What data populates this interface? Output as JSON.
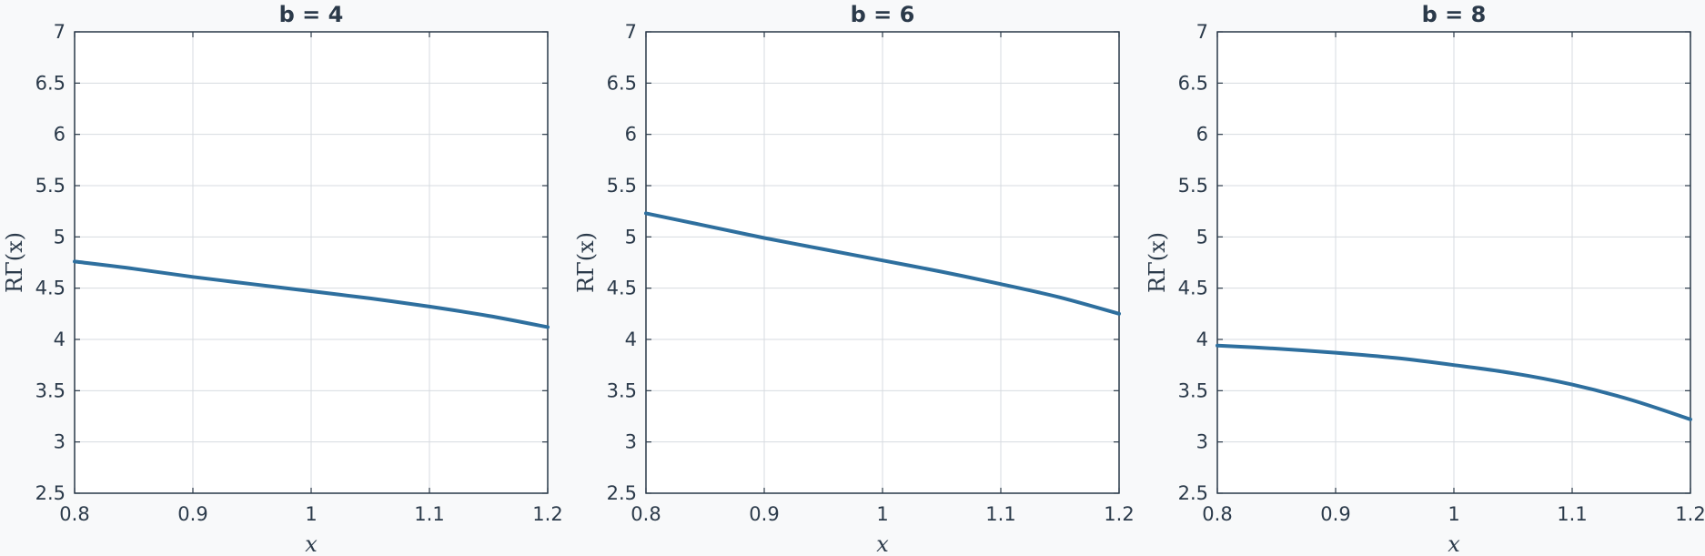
{
  "chart_data": [
    {
      "type": "line",
      "title": "b = 4",
      "xlabel": "x",
      "ylabel": "RΓ(x)",
      "xlim": [
        0.8,
        1.2
      ],
      "ylim": [
        2.5,
        7
      ],
      "xticks": [
        "0.8",
        "0.9",
        "1",
        "1.1",
        "1.2"
      ],
      "yticks": [
        "2.5",
        "3",
        "3.5",
        "4",
        "4.5",
        "5",
        "5.5",
        "6",
        "6.5",
        "7"
      ],
      "grid": true,
      "series": [
        {
          "color": "#2e6f9e",
          "x": [
            0.8,
            0.85,
            0.9,
            0.95,
            1.0,
            1.05,
            1.1,
            1.15,
            1.2
          ],
          "y": [
            4.76,
            4.69,
            4.61,
            4.54,
            4.47,
            4.4,
            4.32,
            4.23,
            4.12
          ]
        }
      ]
    },
    {
      "type": "line",
      "title": "b = 6",
      "xlabel": "x",
      "ylabel": "RΓ(x)",
      "xlim": [
        0.8,
        1.2
      ],
      "ylim": [
        2.5,
        7
      ],
      "xticks": [
        "0.8",
        "0.9",
        "1",
        "1.1",
        "1.2"
      ],
      "yticks": [
        "2.5",
        "3",
        "3.5",
        "4",
        "4.5",
        "5",
        "5.5",
        "6",
        "6.5",
        "7"
      ],
      "grid": true,
      "series": [
        {
          "color": "#2e6f9e",
          "x": [
            0.8,
            0.85,
            0.9,
            0.95,
            1.0,
            1.05,
            1.1,
            1.15,
            1.2
          ],
          "y": [
            5.23,
            5.11,
            4.99,
            4.88,
            4.77,
            4.66,
            4.54,
            4.41,
            4.25
          ]
        }
      ]
    },
    {
      "type": "line",
      "title": "b = 8",
      "xlabel": "x",
      "ylabel": "RΓ(x)",
      "xlim": [
        0.8,
        1.2
      ],
      "ylim": [
        2.5,
        7
      ],
      "xticks": [
        "0.8",
        "0.9",
        "1",
        "1.1",
        "1.2"
      ],
      "yticks": [
        "2.5",
        "3",
        "3.5",
        "4",
        "4.5",
        "5",
        "5.5",
        "6",
        "6.5",
        "7"
      ],
      "grid": true,
      "series": [
        {
          "color": "#2e6f9e",
          "x": [
            0.8,
            0.85,
            0.9,
            0.95,
            1.0,
            1.05,
            1.1,
            1.15,
            1.2
          ],
          "y": [
            3.94,
            3.91,
            3.87,
            3.82,
            3.75,
            3.67,
            3.56,
            3.41,
            3.22
          ]
        }
      ]
    }
  ]
}
